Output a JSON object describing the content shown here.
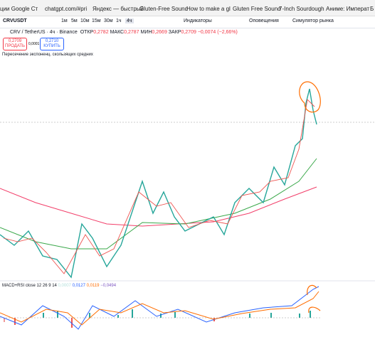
{
  "bookmarks": [
    "ции Google Ст",
    "chatgpt.com/#pri",
    "Яндекс — быстрый",
    "Gluten-Free Sound",
    "How to make a gl",
    "Gluten Free Sound",
    "7-Inch Sourdough",
    "Аниме: Императ",
    "Б"
  ],
  "toolbar": {
    "symbol": "CRVUSDT",
    "intervals": [
      "1м",
      "5м",
      "10м",
      "15м",
      "30м",
      "1ч",
      "4ч"
    ],
    "indicators": "Индикаторы",
    "alerts": "Оповещения",
    "simulator": "Симулятор рынка"
  },
  "legend": {
    "title": "CRV / TetherUS · 4ч · Binance",
    "open_label": "ОТКР",
    "open": "0,2782",
    "high_label": "МАКС",
    "high": "0,2787",
    "low_label": "МИН",
    "low": "0,2669",
    "close_label": "ЗАКР",
    "close": "0,2709",
    "change": "−0,0074 (−2,66%)"
  },
  "trade": {
    "sell_price": "0,2709",
    "sell": "ПРОДАТЬ",
    "spread": "0,0001",
    "buy_price": "0,2710",
    "buy": "КУПИТЬ"
  },
  "indicator": "Пересечение экспоненц. скользящих средних",
  "macd": {
    "title": "MACD+RSI close 12 26 9 14",
    "values": [
      "0,0007",
      "0,0127",
      "0,0119",
      "−0,0494"
    ]
  }
}
